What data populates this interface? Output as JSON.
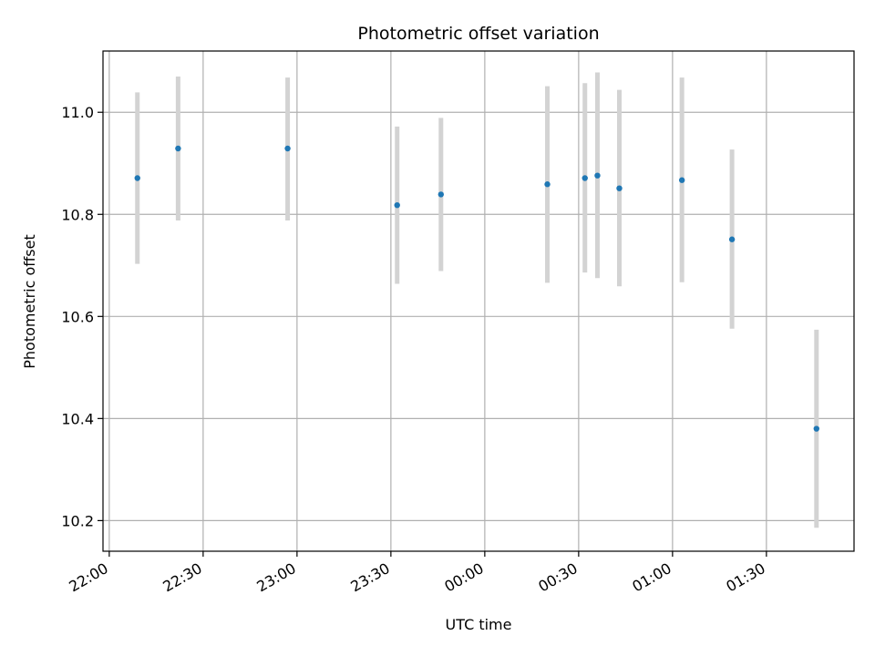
{
  "chart_data": {
    "type": "scatter",
    "title": "Photometric offset variation",
    "xlabel": "UTC time",
    "ylabel": "Photometric offset",
    "x_ticks": [
      "22:00",
      "22:30",
      "23:00",
      "23:30",
      "00:00",
      "00:30",
      "01:00",
      "01:30"
    ],
    "y_ticks": [
      "10.2",
      "10.4",
      "10.6",
      "10.8",
      "11.0"
    ],
    "xlim": [
      "21:58",
      "23:59 +1 01:58"
    ],
    "x_range": [
      "21:58",
      "01:58"
    ],
    "ylim": [
      10.14,
      11.12
    ],
    "grid": true,
    "points": [
      {
        "x": "22:09",
        "y": 10.871,
        "y_low": 10.703,
        "y_high": 11.039
      },
      {
        "x": "22:22",
        "y": 10.929,
        "y_low": 10.788,
        "y_high": 11.07
      },
      {
        "x": "22:57",
        "y": 10.929,
        "y_low": 10.788,
        "y_high": 11.068
      },
      {
        "x": "23:32",
        "y": 10.818,
        "y_low": 10.664,
        "y_high": 10.972
      },
      {
        "x": "23:46",
        "y": 10.839,
        "y_low": 10.689,
        "y_high": 10.989
      },
      {
        "x": "00:20",
        "y": 10.859,
        "y_low": 10.666,
        "y_high": 11.051
      },
      {
        "x": "00:32",
        "y": 10.871,
        "y_low": 10.686,
        "y_high": 11.057
      },
      {
        "x": "00:36",
        "y": 10.876,
        "y_low": 10.675,
        "y_high": 11.078
      },
      {
        "x": "00:43",
        "y": 10.851,
        "y_low": 10.659,
        "y_high": 11.044
      },
      {
        "x": "01:03",
        "y": 10.867,
        "y_low": 10.667,
        "y_high": 11.068
      },
      {
        "x": "01:19",
        "y": 10.751,
        "y_low": 10.576,
        "y_high": 10.927
      },
      {
        "x": "01:46",
        "y": 10.38,
        "y_low": 10.186,
        "y_high": 10.574
      }
    ],
    "colors": {
      "point": "#1f77b4",
      "errorbar": "#d3d3d3",
      "grid": "#b0b0b0"
    }
  }
}
